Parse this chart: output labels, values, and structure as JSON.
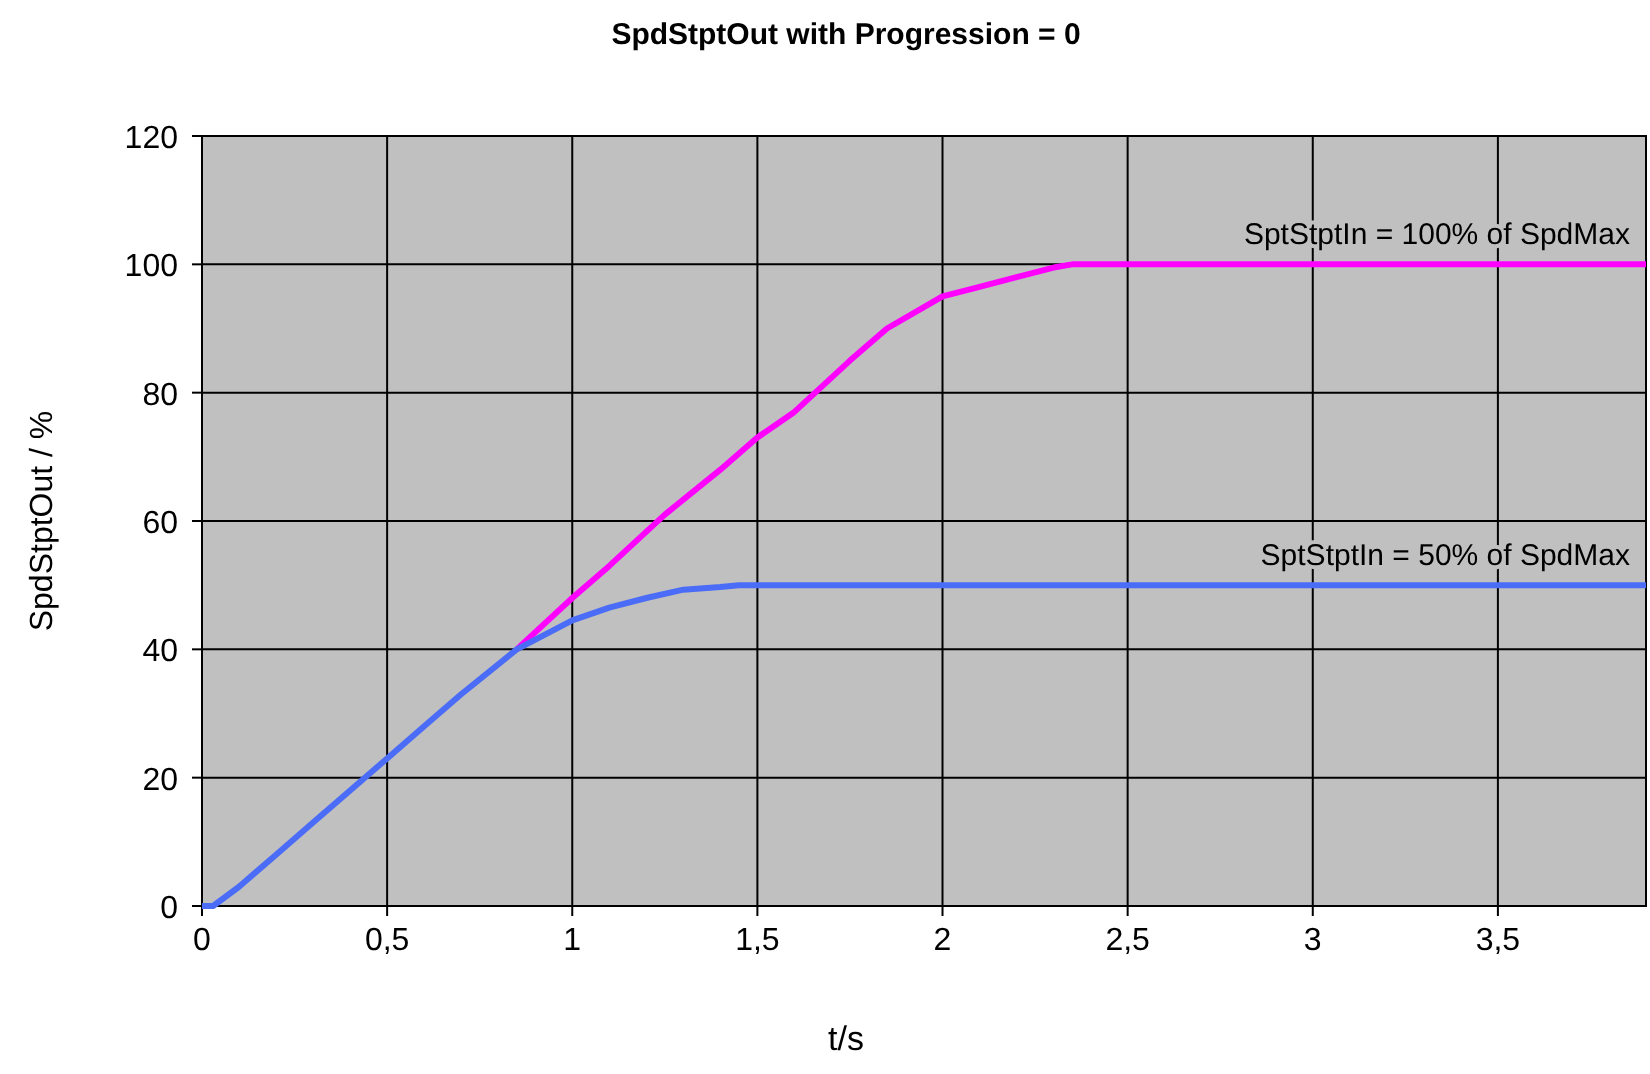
{
  "chart_data": {
    "type": "line",
    "title": "SpdStptOut with Progression = 0",
    "xlabel": "t/s",
    "ylabel": "SpdStptOut / %",
    "xlim": [
      0,
      3.9
    ],
    "xticks": [
      0,
      {
        "value": 0.5,
        "label": "0,5"
      },
      1,
      {
        "value": 1.5,
        "label": "1,5"
      },
      2,
      {
        "value": 2.5,
        "label": "2,5"
      },
      3,
      {
        "value": 3.5,
        "label": "3,5"
      }
    ],
    "ylim": [
      0,
      120
    ],
    "yticks": [
      0,
      20,
      40,
      60,
      80,
      100,
      120
    ],
    "grid": true,
    "marker": "none",
    "line_style": "solid",
    "series": [
      {
        "name": "SptStptIn = 100% of SpdMax",
        "color": "#ff00ff",
        "x": [
          0.85,
          1,
          1.1,
          1.25,
          1.4,
          1.5,
          1.6,
          1.75,
          1.85,
          2,
          2.1,
          2.2,
          2.3,
          2.35,
          2.5,
          3,
          3.5,
          3.9
        ],
        "values": [
          40,
          48,
          53,
          61,
          68,
          73,
          77,
          85,
          90,
          95,
          96.5,
          98,
          99.5,
          100,
          100,
          100,
          100,
          100
        ]
      },
      {
        "name": "SptStptIn = 50% of SpdMax",
        "color": "#4a6cf7",
        "x": [
          0,
          0.03,
          0.1,
          0.2,
          0.3,
          0.4,
          0.5,
          0.6,
          0.7,
          0.85,
          1,
          1.1,
          1.2,
          1.3,
          1.4,
          1.45,
          1.5,
          2,
          2.5,
          3,
          3.5,
          3.9
        ],
        "values": [
          0,
          0,
          3,
          8,
          13,
          18,
          23,
          28,
          33,
          40,
          44.5,
          46.5,
          48,
          49.3,
          49.7,
          50,
          50,
          50,
          50,
          50,
          50,
          50
        ]
      }
    ]
  }
}
